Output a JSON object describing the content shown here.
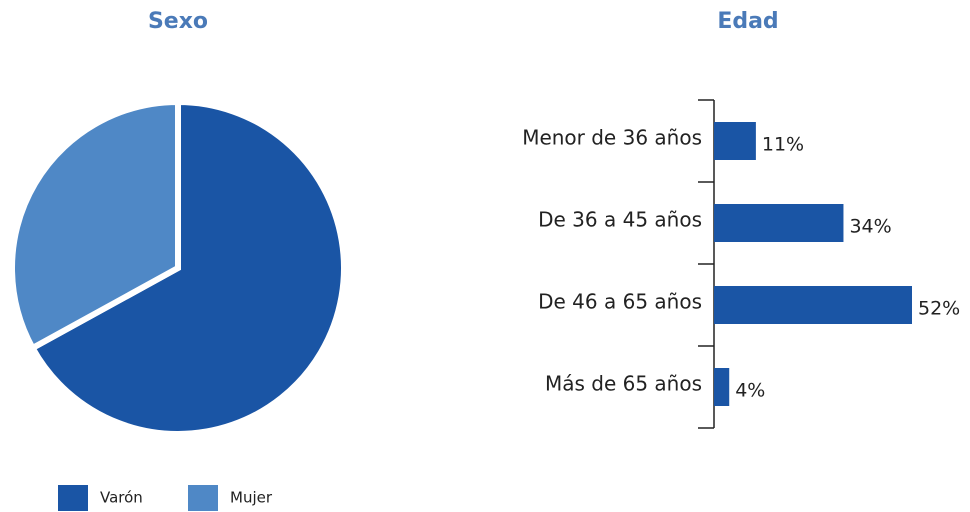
{
  "chart_data": [
    {
      "type": "pie",
      "title": "Sexo",
      "categories": [
        "Varón",
        "Mujer"
      ],
      "values": [
        67,
        33
      ],
      "colors": [
        "#1a55a5",
        "#4f88c6"
      ],
      "legend": "bottom"
    },
    {
      "type": "hbar",
      "title": "Edad",
      "categories": [
        "Menor de 36 años",
        "De 36 a 45 años",
        "De 46 a 65 años",
        "Más de 65 años"
      ],
      "values": [
        11,
        34,
        52,
        4
      ],
      "value_labels": [
        "11%",
        "34%",
        "52%",
        "4%"
      ],
      "color": "#1a55a5"
    }
  ]
}
